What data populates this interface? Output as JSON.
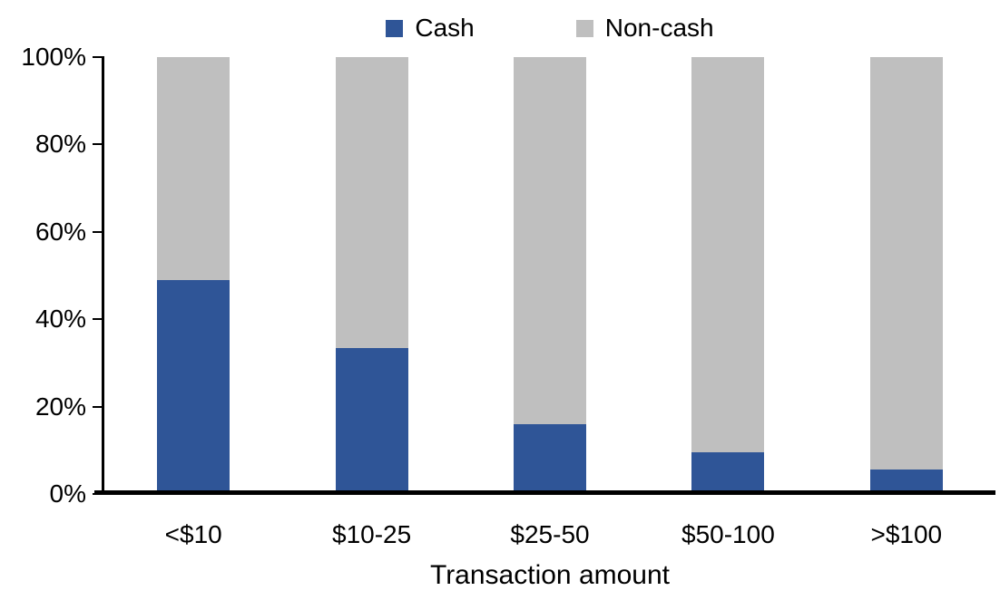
{
  "chart_data": {
    "type": "bar",
    "stacked": true,
    "stack_total": 100,
    "categories": [
      "<$10",
      "$10-25",
      "$25-50",
      "$50-100",
      ">$100"
    ],
    "series": [
      {
        "name": "Cash",
        "color": "#2F5597",
        "values": [
          49,
          33.5,
          16,
          9.5,
          5.5
        ]
      },
      {
        "name": "Non-cash",
        "color": "#BFBFBF",
        "values": [
          51,
          66.5,
          84,
          90.5,
          94.5
        ]
      }
    ],
    "xlabel": "Transaction amount",
    "ylim": [
      0,
      100
    ],
    "ytick_values": [
      0,
      20,
      40,
      60,
      80,
      100
    ],
    "ytick_labels": [
      "0%",
      "20%",
      "40%",
      "60%",
      "80%",
      "100%"
    ],
    "grid": false,
    "legend_position": "top-center",
    "axis_color": "#000000",
    "text_color": "#000000",
    "background": "#FFFFFF"
  }
}
